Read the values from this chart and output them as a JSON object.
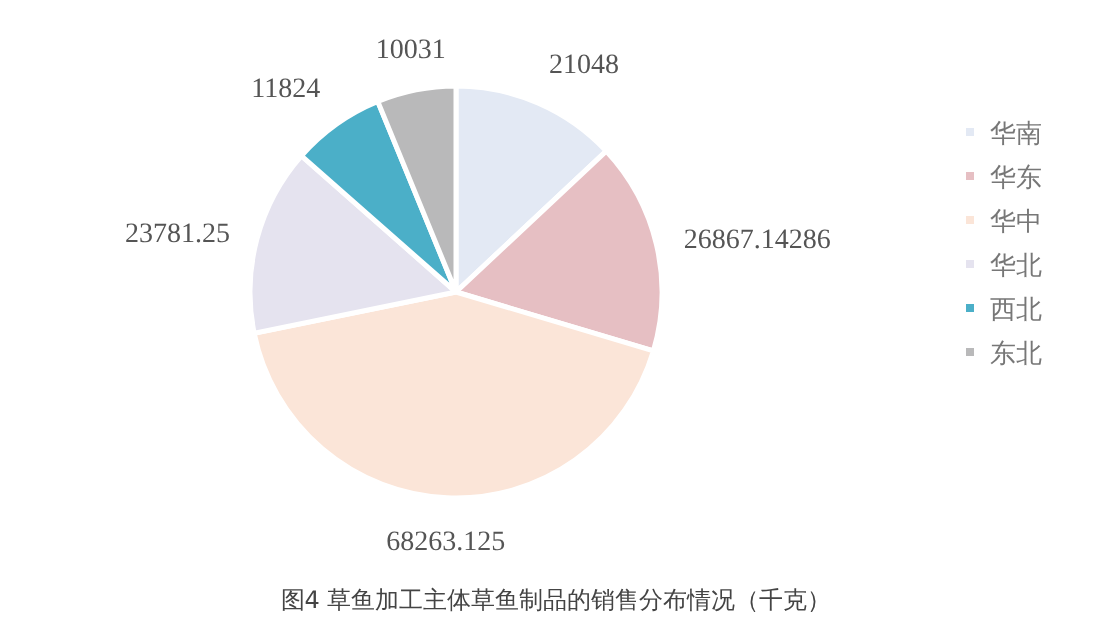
{
  "chart_data": {
    "type": "pie",
    "categories": [
      "华南",
      "华东",
      "华中",
      "华北",
      "西北",
      "东北"
    ],
    "values": [
      21048,
      26867.14286,
      68263.125,
      23781.25,
      11824,
      10031
    ],
    "colors": [
      "#e3e9f4",
      "#e6bfc3",
      "#fbe5d8",
      "#e5e3ef",
      "#4bafc8",
      "#b9b9ba"
    ],
    "data_labels": true,
    "legend": "right",
    "annotations": [
      "图4 草鱼加工主体草鱼制品的销售分布情况（千克）"
    ]
  }
}
